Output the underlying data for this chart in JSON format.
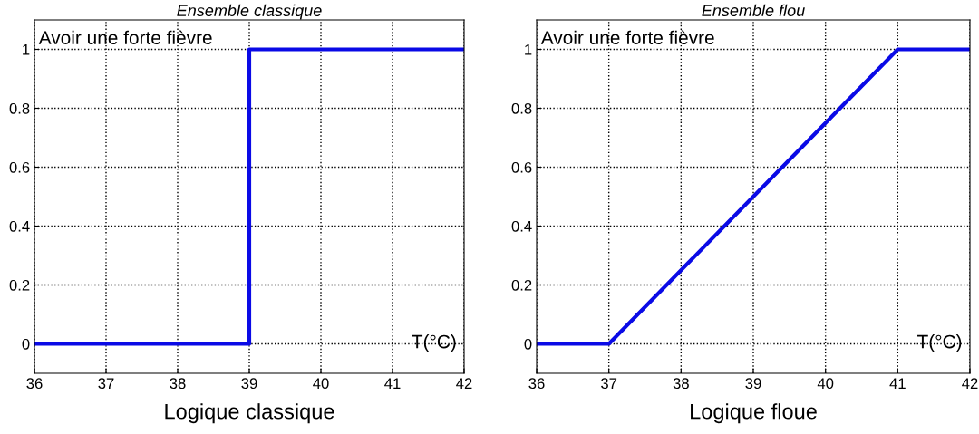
{
  "chart_data": [
    {
      "type": "line",
      "title": "Ensemble classique",
      "xlabel": "T(°C)",
      "annotations": [
        "Avoir une forte fièvre",
        "Logique classique"
      ],
      "x": [
        36,
        39,
        39,
        42
      ],
      "series": [
        {
          "color": "#0a0ae6",
          "values": [
            0,
            0,
            1,
            1
          ]
        }
      ],
      "xlim": [
        36,
        42
      ],
      "ylim": [
        -0.1,
        1.1
      ],
      "xticks": [
        36,
        37,
        38,
        39,
        40,
        41,
        42
      ],
      "yticks": [
        0,
        0.2,
        0.4,
        0.6,
        0.8,
        1
      ],
      "grid": true,
      "line_style": "solid"
    },
    {
      "type": "line",
      "title": "Ensemble flou",
      "xlabel": "T(°C)",
      "annotations": [
        "Avoir une forte fièvre",
        "Logique floue"
      ],
      "x": [
        36,
        37,
        41,
        42
      ],
      "series": [
        {
          "color": "#0a0ae6",
          "values": [
            0,
            0,
            1,
            1
          ]
        }
      ],
      "xlim": [
        36,
        42
      ],
      "ylim": [
        -0.1,
        1.1
      ],
      "xticks": [
        36,
        37,
        38,
        39,
        40,
        41,
        42
      ],
      "yticks": [
        0,
        0.2,
        0.4,
        0.6,
        0.8,
        1
      ],
      "grid": true,
      "line_style": "solid"
    }
  ]
}
